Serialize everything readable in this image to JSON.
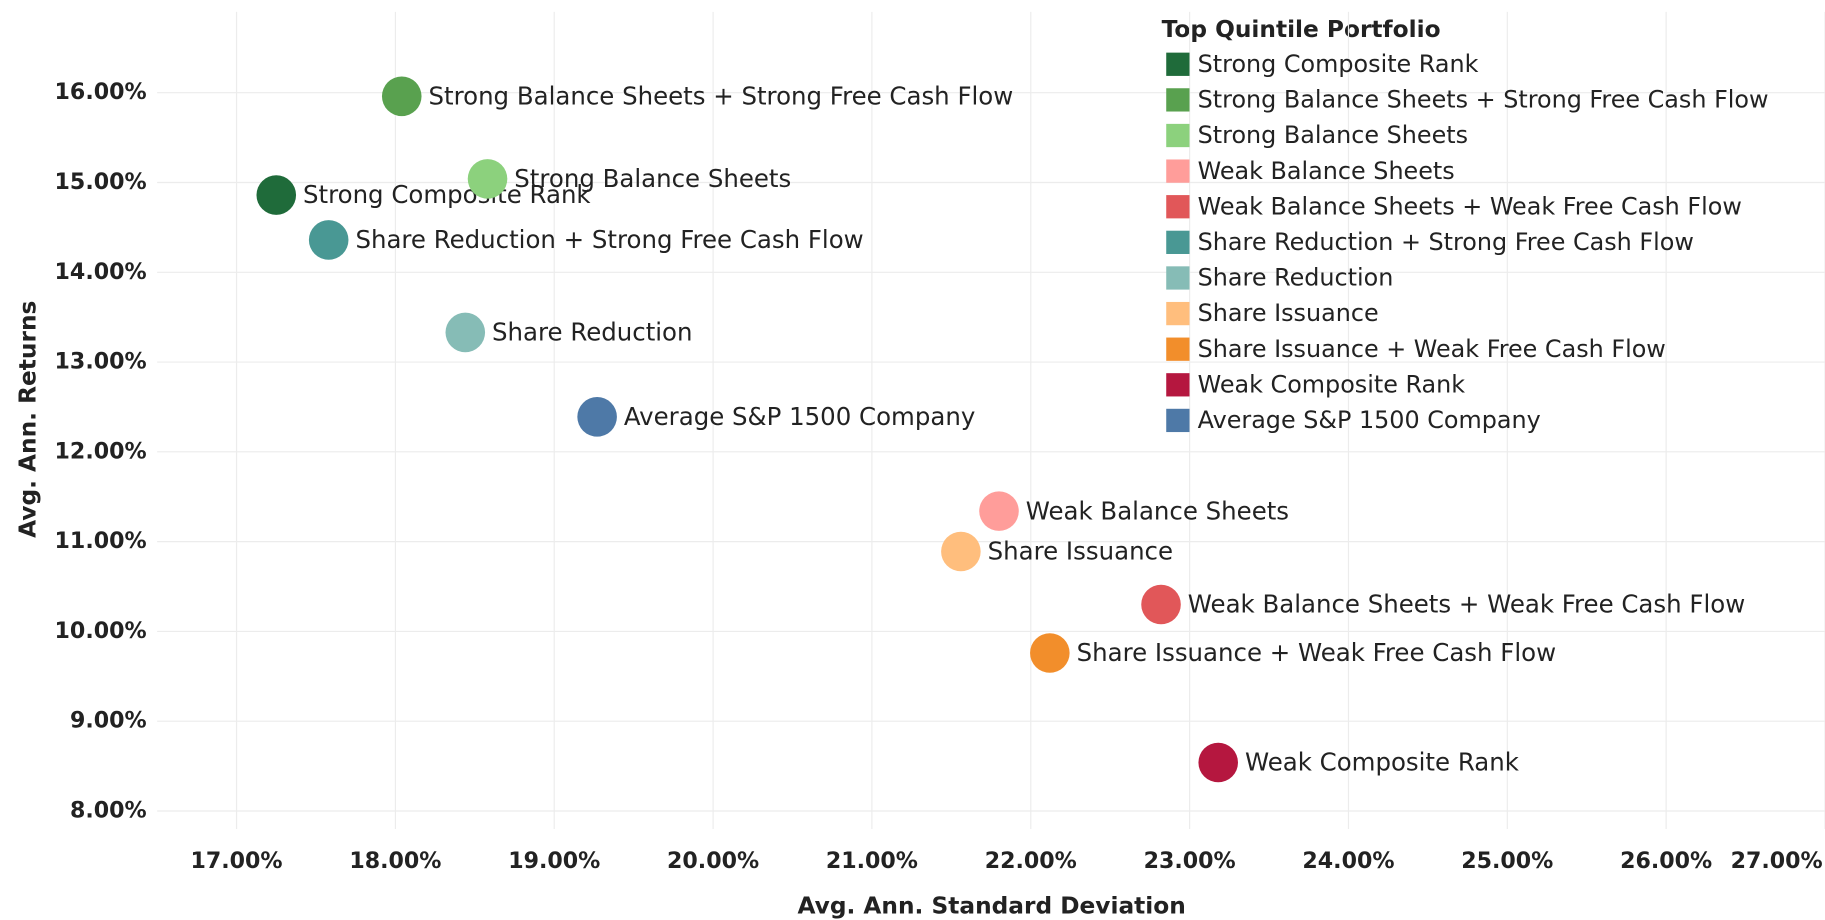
{
  "chart_data": {
    "type": "scatter",
    "x_label": "Avg. Ann. Standard Deviation",
    "y_label": "Avg. Ann. Returns",
    "legend_title": "Top Quintile Portfolio",
    "legend": "top-right",
    "grid": true,
    "xlim": [
      16.5,
      27.0
    ],
    "ylim": [
      7.8,
      16.9
    ],
    "xticks": [
      {
        "value": 17,
        "label": "17.00%"
      },
      {
        "value": 18,
        "label": "18.00%"
      },
      {
        "value": 19,
        "label": "19.00%"
      },
      {
        "value": 20,
        "label": "20.00%"
      },
      {
        "value": 21,
        "label": "21.00%"
      },
      {
        "value": 22,
        "label": "22.00%"
      },
      {
        "value": 23,
        "label": "23.00%"
      },
      {
        "value": 24,
        "label": "24.00%"
      },
      {
        "value": 25,
        "label": "25.00%"
      },
      {
        "value": 26,
        "label": "26.00%"
      },
      {
        "value": 27,
        "label": "27.00%"
      }
    ],
    "yticks": [
      {
        "value": 8,
        "label": "8.00%"
      },
      {
        "value": 9,
        "label": "9.00%"
      },
      {
        "value": 10,
        "label": "10.00%"
      },
      {
        "value": 11,
        "label": "11.00%"
      },
      {
        "value": 12,
        "label": "12.00%"
      },
      {
        "value": 13,
        "label": "13.00%"
      },
      {
        "value": 14,
        "label": "14.00%"
      },
      {
        "value": 15,
        "label": "15.00%"
      },
      {
        "value": 16,
        "label": "16.00%"
      }
    ],
    "series": [
      {
        "name": "Strong Composite Rank",
        "color": "#1f6b3a",
        "x": [
          17.25
        ],
        "values": [
          14.86
        ]
      },
      {
        "name": "Strong Balance Sheets + Strong Free Cash Flow",
        "color": "#59a14f",
        "x": [
          18.04
        ],
        "values": [
          15.96
        ]
      },
      {
        "name": "Strong Balance Sheets",
        "color": "#8cd17d",
        "x": [
          18.58
        ],
        "values": [
          15.04
        ]
      },
      {
        "name": "Weak Balance Sheets",
        "color": "#ff9d9a",
        "x": [
          21.8
        ],
        "values": [
          11.34
        ]
      },
      {
        "name": "Weak Balance Sheets + Weak Free Cash Flow",
        "color": "#e15759",
        "x": [
          22.82
        ],
        "values": [
          10.3
        ]
      },
      {
        "name": "Share Reduction + Strong Free Cash Flow",
        "color": "#499894",
        "x": [
          17.58
        ],
        "values": [
          14.36
        ]
      },
      {
        "name": "Share Reduction",
        "color": "#86bcb6",
        "x": [
          18.44
        ],
        "values": [
          13.33
        ]
      },
      {
        "name": "Share Issuance",
        "color": "#ffbe7d",
        "x": [
          21.56
        ],
        "values": [
          10.89
        ]
      },
      {
        "name": "Share Issuance + Weak Free Cash Flow",
        "color": "#f28e2b",
        "x": [
          22.12
        ],
        "values": [
          9.76
        ]
      },
      {
        "name": "Weak Composite Rank",
        "color": "#b5173f",
        "x": [
          23.18
        ],
        "values": [
          8.54
        ]
      },
      {
        "name": "Average S&P 1500 Company",
        "color": "#4e79a7",
        "x": [
          19.27
        ],
        "values": [
          12.39
        ]
      }
    ]
  }
}
